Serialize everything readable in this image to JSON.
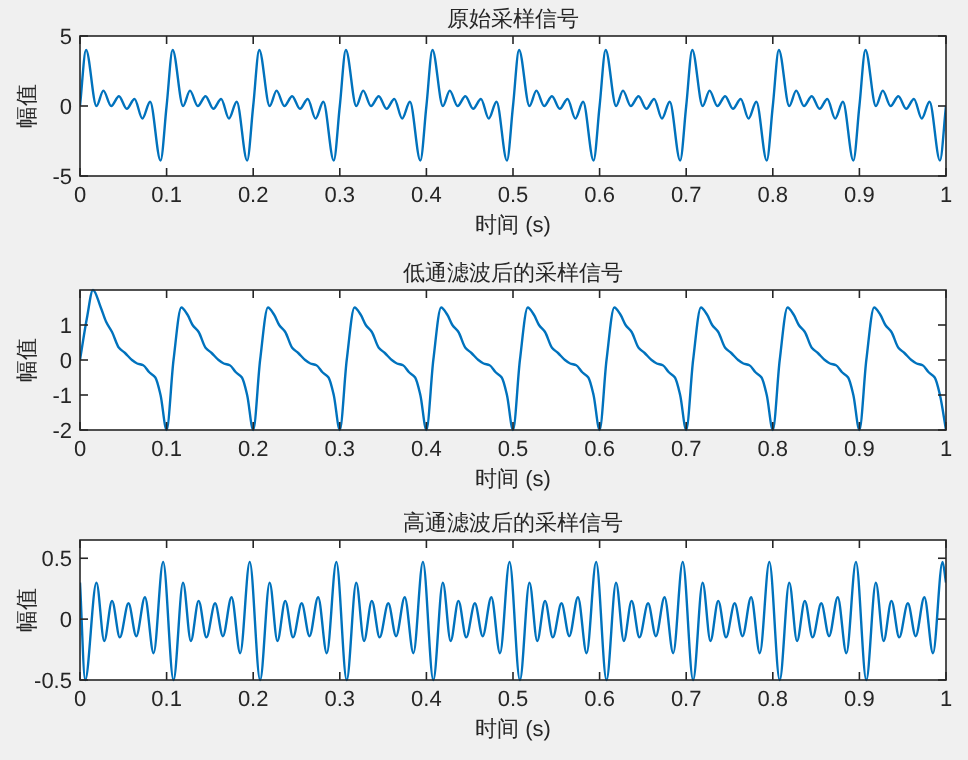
{
  "chart_data": [
    {
      "type": "line",
      "title": "原始采样信号",
      "xlabel": "时间 (s)",
      "ylabel": "幅值",
      "color": "#0072bd",
      "xlim": [
        0,
        1
      ],
      "ylim": [
        -5,
        5
      ],
      "xticks": [
        0,
        0.1,
        0.2,
        0.3,
        0.4,
        0.5,
        0.6,
        0.7,
        0.8,
        0.9,
        1
      ],
      "yticks": [
        -5,
        0,
        5
      ],
      "x": [
        0,
        0.007,
        0.019,
        0.027,
        0.036,
        0.045,
        0.054,
        0.063,
        0.072,
        0.081,
        0.093,
        0.1,
        0.107,
        0.119,
        0.127,
        0.136,
        0.145,
        0.154,
        0.163,
        0.172,
        0.181,
        0.193,
        0.2,
        0.207,
        0.219,
        0.227,
        0.236,
        0.245,
        0.254,
        0.263,
        0.272,
        0.281,
        0.293,
        0.3,
        0.307,
        0.319,
        0.327,
        0.336,
        0.345,
        0.354,
        0.363,
        0.372,
        0.381,
        0.393,
        0.4,
        0.407,
        0.419,
        0.427,
        0.436,
        0.445,
        0.454,
        0.463,
        0.472,
        0.481,
        0.493,
        0.5,
        0.507,
        0.519,
        0.527,
        0.536,
        0.545,
        0.554,
        0.563,
        0.572,
        0.581,
        0.593,
        0.6,
        0.607,
        0.619,
        0.627,
        0.636,
        0.645,
        0.654,
        0.663,
        0.672,
        0.681,
        0.693,
        0.7,
        0.707,
        0.719,
        0.727,
        0.736,
        0.745,
        0.754,
        0.763,
        0.772,
        0.781,
        0.793,
        0.8,
        0.807,
        0.819,
        0.827,
        0.836,
        0.845,
        0.854,
        0.863,
        0.872,
        0.881,
        0.893,
        0.9,
        0.907,
        0.919,
        0.927,
        0.936,
        0.945,
        0.954,
        0.963,
        0.972,
        0.981,
        0.993,
        1
      ],
      "values": [
        0,
        4,
        0,
        1.1,
        0,
        0.7,
        -0.2,
        0.5,
        -0.9,
        0.3,
        -3.9,
        0,
        4,
        0,
        1.1,
        0,
        0.7,
        -0.2,
        0.5,
        -0.9,
        0.3,
        -3.9,
        0,
        4,
        0,
        1.1,
        0,
        0.7,
        -0.2,
        0.5,
        -0.9,
        0.3,
        -3.9,
        0,
        4,
        0,
        1.1,
        0,
        0.7,
        -0.2,
        0.5,
        -0.9,
        0.3,
        -3.9,
        0,
        4,
        0,
        1.1,
        0,
        0.7,
        -0.2,
        0.5,
        -0.9,
        0.3,
        -3.9,
        0,
        4,
        0,
        1.1,
        0,
        0.7,
        -0.2,
        0.5,
        -0.9,
        0.3,
        -3.9,
        0,
        4,
        0,
        1.1,
        0,
        0.7,
        -0.2,
        0.5,
        -0.9,
        0.3,
        -3.9,
        0,
        4,
        0,
        1.1,
        0,
        0.7,
        -0.2,
        0.5,
        -0.9,
        0.3,
        -3.9,
        0,
        4,
        0,
        1.1,
        0,
        0.7,
        -0.2,
        0.5,
        -0.9,
        0.3,
        -3.9,
        0,
        4,
        0,
        1.1,
        0,
        0.7,
        -0.2,
        0.5,
        -0.9,
        0.3,
        -3.9,
        0
      ]
    },
    {
      "type": "line",
      "title": "低通滤波后的采样信号",
      "xlabel": "时间 (s)",
      "ylabel": "幅值",
      "color": "#0072bd",
      "xlim": [
        0,
        1
      ],
      "ylim": [
        -2,
        2
      ],
      "xticks": [
        0,
        0.1,
        0.2,
        0.3,
        0.4,
        0.5,
        0.6,
        0.7,
        0.8,
        0.9,
        1
      ],
      "yticks": [
        -2,
        -1,
        0,
        1
      ],
      "x": [
        0,
        0.008,
        0.015,
        0.024,
        0.03,
        0.037,
        0.045,
        0.052,
        0.06,
        0.066,
        0.073,
        0.08,
        0.087,
        0.093,
        0.1,
        0.108,
        0.117,
        0.124,
        0.13,
        0.137,
        0.145,
        0.152,
        0.16,
        0.166,
        0.173,
        0.18,
        0.187,
        0.193,
        0.2,
        0.208,
        0.217,
        0.224,
        0.23,
        0.237,
        0.245,
        0.252,
        0.26,
        0.266,
        0.273,
        0.28,
        0.287,
        0.293,
        0.3,
        0.308,
        0.317,
        0.324,
        0.33,
        0.337,
        0.345,
        0.352,
        0.36,
        0.366,
        0.373,
        0.38,
        0.387,
        0.393,
        0.4,
        0.408,
        0.417,
        0.424,
        0.43,
        0.437,
        0.445,
        0.452,
        0.46,
        0.466,
        0.473,
        0.48,
        0.487,
        0.493,
        0.5,
        0.508,
        0.517,
        0.524,
        0.53,
        0.537,
        0.545,
        0.552,
        0.56,
        0.566,
        0.573,
        0.58,
        0.587,
        0.593,
        0.6,
        0.608,
        0.617,
        0.624,
        0.63,
        0.637,
        0.645,
        0.652,
        0.66,
        0.666,
        0.673,
        0.68,
        0.687,
        0.693,
        0.7,
        0.708,
        0.717,
        0.724,
        0.73,
        0.737,
        0.745,
        0.752,
        0.76,
        0.766,
        0.773,
        0.78,
        0.787,
        0.793,
        0.8,
        0.808,
        0.817,
        0.824,
        0.83,
        0.837,
        0.845,
        0.852,
        0.86,
        0.866,
        0.873,
        0.88,
        0.887,
        0.893,
        0.9,
        0.908,
        0.917,
        0.924,
        0.93,
        0.937,
        0.945,
        0.952,
        0.96,
        0.966,
        0.973,
        0.98,
        0.987,
        0.993,
        1
      ],
      "values": [
        0,
        1.2,
        2,
        1.5,
        1.1,
        0.8,
        0.35,
        0.2,
        0,
        -0.1,
        -0.15,
        -0.35,
        -0.5,
        -1,
        -2,
        0,
        1.5,
        1.3,
        1,
        0.8,
        0.35,
        0.2,
        0,
        -0.1,
        -0.15,
        -0.35,
        -0.5,
        -1,
        -2,
        0,
        1.5,
        1.3,
        1,
        0.8,
        0.35,
        0.2,
        0,
        -0.1,
        -0.15,
        -0.35,
        -0.5,
        -1,
        -2,
        0,
        1.5,
        1.3,
        1,
        0.8,
        0.35,
        0.2,
        0,
        -0.1,
        -0.15,
        -0.35,
        -0.5,
        -1,
        -2,
        0,
        1.5,
        1.3,
        1,
        0.8,
        0.35,
        0.2,
        0,
        -0.1,
        -0.15,
        -0.35,
        -0.5,
        -1,
        -2,
        0,
        1.5,
        1.3,
        1,
        0.8,
        0.35,
        0.2,
        0,
        -0.1,
        -0.15,
        -0.35,
        -0.5,
        -1,
        -2,
        0,
        1.5,
        1.3,
        1,
        0.8,
        0.35,
        0.2,
        0,
        -0.1,
        -0.15,
        -0.35,
        -0.5,
        -1,
        -2,
        0,
        1.5,
        1.3,
        1,
        0.8,
        0.35,
        0.2,
        0,
        -0.1,
        -0.15,
        -0.35,
        -0.5,
        -1,
        -2,
        0,
        1.5,
        1.3,
        1,
        0.8,
        0.35,
        0.2,
        0,
        -0.1,
        -0.15,
        -0.35,
        -0.5,
        -1,
        -2,
        0,
        1.5,
        1.3,
        1,
        0.8,
        0.35,
        0.2,
        0,
        -0.1,
        -0.15,
        -0.35,
        -0.5,
        -1,
        -2
      ]
    },
    {
      "type": "line",
      "title": "高通滤波后的采样信号",
      "xlabel": "时间 (s)",
      "ylabel": "幅值",
      "color": "#0072bd",
      "xlim": [
        0,
        1
      ],
      "ylim": [
        -0.5,
        0.65
      ],
      "xticks": [
        0,
        0.1,
        0.2,
        0.3,
        0.4,
        0.5,
        0.6,
        0.7,
        0.8,
        0.9,
        1
      ],
      "yticks": [
        -0.5,
        0,
        0.5
      ],
      "x": [
        0,
        0.006,
        0.019,
        0.028,
        0.037,
        0.046,
        0.056,
        0.065,
        0.075,
        0.085,
        0.096,
        0.108,
        0.119,
        0.128,
        0.137,
        0.146,
        0.156,
        0.165,
        0.175,
        0.185,
        0.196,
        0.208,
        0.219,
        0.228,
        0.237,
        0.246,
        0.256,
        0.265,
        0.275,
        0.285,
        0.296,
        0.308,
        0.319,
        0.328,
        0.337,
        0.346,
        0.356,
        0.365,
        0.375,
        0.385,
        0.396,
        0.408,
        0.419,
        0.428,
        0.437,
        0.446,
        0.456,
        0.465,
        0.475,
        0.485,
        0.496,
        0.508,
        0.519,
        0.528,
        0.537,
        0.546,
        0.556,
        0.565,
        0.575,
        0.585,
        0.596,
        0.608,
        0.619,
        0.628,
        0.637,
        0.646,
        0.656,
        0.665,
        0.675,
        0.685,
        0.696,
        0.708,
        0.719,
        0.728,
        0.737,
        0.746,
        0.756,
        0.765,
        0.775,
        0.785,
        0.796,
        0.808,
        0.819,
        0.828,
        0.837,
        0.846,
        0.856,
        0.865,
        0.875,
        0.885,
        0.896,
        0.908,
        0.919,
        0.928,
        0.937,
        0.946,
        0.956,
        0.965,
        0.975,
        0.985,
        0.996,
        1
      ],
      "values": [
        0.3,
        -0.5,
        0.3,
        -0.18,
        0.15,
        -0.15,
        0.13,
        -0.14,
        0.18,
        -0.28,
        0.47,
        -0.5,
        0.3,
        -0.18,
        0.15,
        -0.15,
        0.13,
        -0.14,
        0.18,
        -0.28,
        0.47,
        -0.5,
        0.3,
        -0.18,
        0.15,
        -0.15,
        0.13,
        -0.14,
        0.18,
        -0.28,
        0.47,
        -0.5,
        0.3,
        -0.18,
        0.15,
        -0.15,
        0.13,
        -0.14,
        0.18,
        -0.28,
        0.47,
        -0.5,
        0.3,
        -0.18,
        0.15,
        -0.15,
        0.13,
        -0.14,
        0.18,
        -0.28,
        0.47,
        -0.5,
        0.3,
        -0.18,
        0.15,
        -0.15,
        0.13,
        -0.14,
        0.18,
        -0.28,
        0.47,
        -0.5,
        0.3,
        -0.18,
        0.15,
        -0.15,
        0.13,
        -0.14,
        0.18,
        -0.28,
        0.47,
        -0.5,
        0.3,
        -0.18,
        0.15,
        -0.15,
        0.13,
        -0.14,
        0.18,
        -0.28,
        0.47,
        -0.5,
        0.3,
        -0.18,
        0.15,
        -0.15,
        0.13,
        -0.14,
        0.18,
        -0.28,
        0.47,
        -0.5,
        0.3,
        -0.18,
        0.15,
        -0.15,
        0.13,
        -0.14,
        0.18,
        -0.28,
        0.47,
        0.3
      ]
    }
  ]
}
